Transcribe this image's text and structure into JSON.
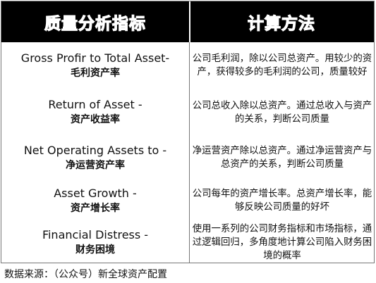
{
  "header": {
    "col_indicator": "质量分析指标",
    "col_method": "计算方法"
  },
  "rows": [
    {
      "indicator_en": "Gross Profir to Total Asset-",
      "indicator_cn": "毛利资产率",
      "method": "公司毛利润，除以公司总资产。用较少的资产，获得较多的毛利润的公司，质量较好"
    },
    {
      "indicator_en": "Return of Asset -",
      "indicator_cn": "资产收益率",
      "method": "公司总收入除以总资产。通过总收入与资产的关系，判断公司质量"
    },
    {
      "indicator_en": "Net Operating Assets to  -",
      "indicator_cn": "净运营资产率",
      "method": "净运营资产除以总资产。通过净运营资产与总资产的关系，判断公司质量"
    },
    {
      "indicator_en": "Asset Growth -",
      "indicator_cn": "资产增长率",
      "method": "公司每年的资产增长率。总资产增长率，能够反映公司质量的好坏"
    },
    {
      "indicator_en": "Financial Distress -",
      "indicator_cn": "财务困境",
      "method": "使用一系列的公司财务指标和市场指标，通过逻辑回归，多角度地计算公司陷入财务困境的概率"
    }
  ],
  "source": "数据来源：（公众号）新全球资产配置"
}
